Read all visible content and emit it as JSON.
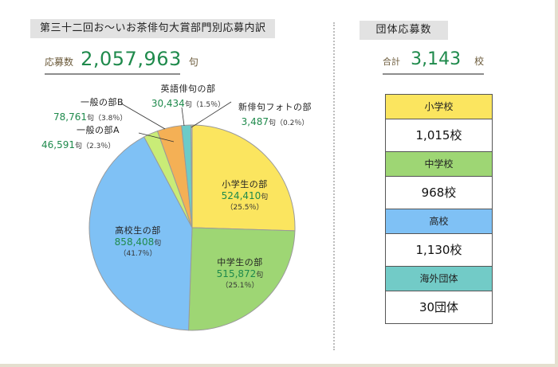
{
  "left_panel": {
    "title": "第三十二回お～いお茶俳句大賞部門別応募内訳",
    "total_label": "応募数",
    "total_value": "2,057,963",
    "total_unit": "句"
  },
  "right_panel": {
    "title": "団体応募数",
    "total_label": "合計",
    "total_value": "3,143",
    "total_unit": "校",
    "rows": [
      {
        "label": "小学校",
        "value": "1,015校",
        "color": "#fbe55f"
      },
      {
        "label": "中学校",
        "value": "968校",
        "color": "#9ed674"
      },
      {
        "label": "高校",
        "value": "1,130校",
        "color": "#7fc1f5"
      },
      {
        "label": "海外団体",
        "value": "30団体",
        "color": "#72cbc7"
      }
    ]
  },
  "unit_ku": "句",
  "chart_data": {
    "type": "pie",
    "title": "第三十二回お～いお茶俳句大賞部門別応募内訳",
    "total": 2057963,
    "start_angle": "12 o'clock, clockwise",
    "slices": [
      {
        "label": "小学生の部",
        "value": 524410,
        "value_text": "524,410",
        "percent": 25.5,
        "percent_text": "（25.5％）",
        "color": "#fbe55f"
      },
      {
        "label": "中学生の部",
        "value": 515872,
        "value_text": "515,872",
        "percent": 25.1,
        "percent_text": "（25.1％）",
        "color": "#9ed674"
      },
      {
        "label": "高校生の部",
        "value": 858408,
        "value_text": "858,408",
        "percent": 41.7,
        "percent_text": "（41.7％）",
        "color": "#7fc1f5"
      },
      {
        "label": "一般の部A",
        "value": 46591,
        "value_text": "46,591",
        "percent": 2.3,
        "percent_text": "（2.3％）",
        "color": "#c9ec77"
      },
      {
        "label": "一般の部B",
        "value": 78761,
        "value_text": "78,761",
        "percent": 3.8,
        "percent_text": "（3.8％）",
        "color": "#f4b055"
      },
      {
        "label": "英語俳句の部",
        "value": 30434,
        "value_text": "30,434",
        "percent": 1.5,
        "percent_text": "（1.5％）",
        "color": "#6ccbc8"
      },
      {
        "label": "新俳句フォトの部",
        "value": 3487,
        "value_text": "3,487",
        "percent": 0.2,
        "percent_text": "（0.2％）",
        "color": "#d9d9d9"
      }
    ]
  }
}
